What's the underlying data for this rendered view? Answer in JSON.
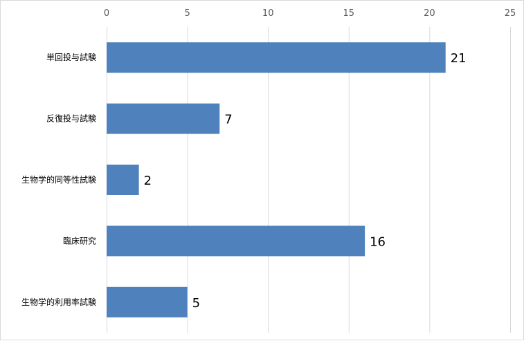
{
  "chart_data": {
    "type": "bar",
    "orientation": "horizontal",
    "categories": [
      "単回投与試験",
      "反復投与試験",
      "生物学的同等性試験",
      "臨床研究",
      "生物学的利用率試験"
    ],
    "values": [
      21,
      7,
      2,
      16,
      5
    ],
    "data_labels": [
      "21",
      "7",
      "2",
      "16",
      "5"
    ],
    "xlim": [
      0,
      25
    ],
    "x_ticks": [
      0,
      5,
      10,
      15,
      20,
      25
    ],
    "x_tick_labels": [
      "0",
      "5",
      "10",
      "15",
      "20",
      "25"
    ],
    "x_axis_position": "top",
    "grid": true,
    "legend": "none",
    "bar_color": "#4f81bd",
    "grid_color": "#d9d9d9"
  }
}
